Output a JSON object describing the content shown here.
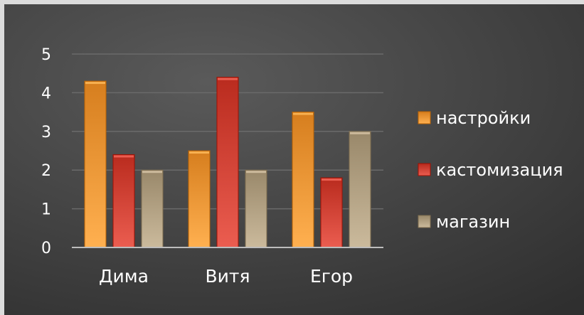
{
  "chart_data": {
    "type": "bar",
    "categories": [
      "Дима",
      "Витя",
      "Егор"
    ],
    "series": [
      {
        "name": "настройки",
        "values": [
          4.3,
          2.5,
          3.5
        ],
        "color": "#f29a3a"
      },
      {
        "name": "кастомизация",
        "values": [
          2.4,
          4.4,
          1.8
        ],
        "color": "#d5473a"
      },
      {
        "name": "магазин",
        "values": [
          2.0,
          2.0,
          3.0
        ],
        "color": "#b5a486"
      }
    ],
    "yticks": [
      "0",
      "1",
      "2",
      "3",
      "4",
      "5"
    ],
    "ylim": [
      0,
      5
    ],
    "grid": true,
    "legend_position": "right",
    "colors": {
      "background": "#3f3f3f",
      "gridline": "#6a6a6a",
      "axis": "#bdbdbd",
      "text": "#ffffff"
    }
  }
}
